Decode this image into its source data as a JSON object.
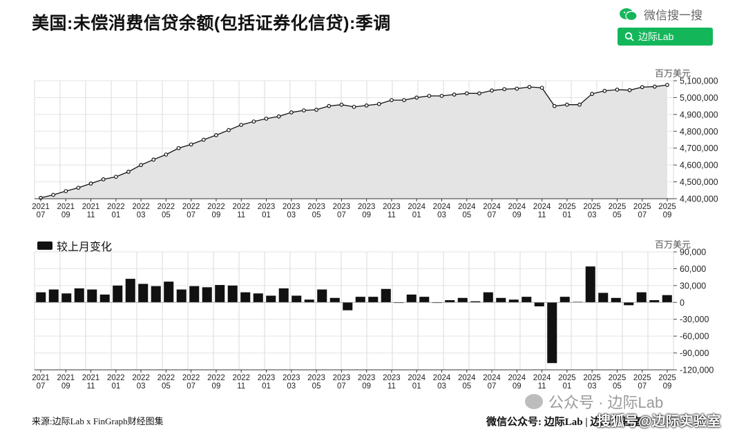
{
  "header": {
    "title": "美国:未偿消费信贷余额(包括证券化信贷):季调",
    "wechat_label": "微信搜一搜",
    "search_text": "边际Lab"
  },
  "footer": {
    "source": "来源:边际Lab x FinGraph财经图集",
    "official_account": "微信公众号: 边际Lab | 边际实验室",
    "watermark_1": "公众号 · 边际Lab",
    "watermark_2": "搜狐号@边际实验室"
  },
  "colors": {
    "line": "#111111",
    "area": "#e4e4e4",
    "bar": "#111111",
    "accent": "#13b75a"
  },
  "chart_data": [
    {
      "type": "area",
      "title": "美国:未偿消费信贷余额(包括证券化信贷):季调",
      "unit": "百万美元",
      "ylim": [
        4400000,
        5100000
      ],
      "yticks": [
        4400000,
        4500000,
        4600000,
        4700000,
        4800000,
        4900000,
        5000000,
        5100000
      ],
      "ytick_labels": [
        "4,400,000",
        "4,500,000",
        "4,600,000",
        "4,700,000",
        "4,800,000",
        "4,900,000",
        "5,000,000",
        "5,100,000"
      ],
      "x_tick_labels": [
        [
          "2021",
          "07"
        ],
        [
          "2021",
          "09"
        ],
        [
          "2021",
          "11"
        ],
        [
          "2022",
          "01"
        ],
        [
          "2022",
          "03"
        ],
        [
          "2022",
          "05"
        ],
        [
          "2022",
          "07"
        ],
        [
          "2022",
          "09"
        ],
        [
          "2022",
          "11"
        ],
        [
          "2023",
          "01"
        ],
        [
          "2023",
          "03"
        ],
        [
          "2023",
          "05"
        ],
        [
          "2023",
          "07"
        ],
        [
          "2023",
          "09"
        ],
        [
          "2023",
          "11"
        ],
        [
          "2024",
          "01"
        ],
        [
          "2024",
          "03"
        ],
        [
          "2024",
          "05"
        ],
        [
          "2024",
          "07"
        ],
        [
          "2024",
          "09"
        ],
        [
          "2024",
          "11"
        ],
        [
          "2025",
          "01"
        ],
        [
          "2025",
          "03"
        ],
        [
          "2025",
          "05"
        ],
        [
          "2025",
          "07"
        ],
        [
          "2025",
          "09"
        ]
      ],
      "x": [
        "2021-07",
        "2021-08",
        "2021-09",
        "2021-10",
        "2021-11",
        "2021-12",
        "2022-01",
        "2022-02",
        "2022-03",
        "2022-04",
        "2022-05",
        "2022-06",
        "2022-07",
        "2022-08",
        "2022-09",
        "2022-10",
        "2022-11",
        "2022-12",
        "2023-01",
        "2023-02",
        "2023-03",
        "2023-04",
        "2023-05",
        "2023-06",
        "2023-07",
        "2023-08",
        "2023-09",
        "2023-10",
        "2023-11",
        "2023-12",
        "2024-01",
        "2024-02",
        "2024-03",
        "2024-04",
        "2024-05",
        "2024-06",
        "2024-07",
        "2024-08",
        "2024-09",
        "2024-10",
        "2024-11",
        "2024-12",
        "2025-01",
        "2025-02",
        "2025-03",
        "2025-04",
        "2025-05",
        "2025-06",
        "2025-07",
        "2025-08",
        "2025-09"
      ],
      "values": [
        4405000,
        4423000,
        4445000,
        4465000,
        4490000,
        4515000,
        4530000,
        4560000,
        4600000,
        4632000,
        4662000,
        4700000,
        4722000,
        4750000,
        4777000,
        4807000,
        4838000,
        4858000,
        4875000,
        4888000,
        4912000,
        4924000,
        4928000,
        4950000,
        4958000,
        4945000,
        4953000,
        4962000,
        4985000,
        4985000,
        5000000,
        5010000,
        5010000,
        5018000,
        5025000,
        5025000,
        5042000,
        5050000,
        5053000,
        5063000,
        5058000,
        4950000,
        4958000,
        4958000,
        5022000,
        5040000,
        5047000,
        5044000,
        5062000,
        5065000,
        5075000
      ],
      "grid": true
    },
    {
      "type": "bar",
      "legend": "较上月变化",
      "unit": "百万美元",
      "ylim": [
        -120000,
        90000
      ],
      "yticks": [
        -120000,
        -90000,
        -60000,
        -30000,
        0,
        30000,
        60000,
        90000
      ],
      "ytick_labels": [
        "-120,000",
        "-90,000",
        "-60,000",
        "-30,000",
        "0",
        "30,000",
        "60,000",
        "90,000"
      ],
      "x_tick_labels": [
        [
          "2021",
          "07"
        ],
        [
          "2021",
          "09"
        ],
        [
          "2021",
          "11"
        ],
        [
          "2022",
          "01"
        ],
        [
          "2022",
          "03"
        ],
        [
          "2022",
          "05"
        ],
        [
          "2022",
          "07"
        ],
        [
          "2022",
          "09"
        ],
        [
          "2022",
          "11"
        ],
        [
          "2023",
          "01"
        ],
        [
          "2023",
          "03"
        ],
        [
          "2023",
          "05"
        ],
        [
          "2023",
          "07"
        ],
        [
          "2023",
          "09"
        ],
        [
          "2023",
          "11"
        ],
        [
          "2024",
          "01"
        ],
        [
          "2024",
          "03"
        ],
        [
          "2024",
          "05"
        ],
        [
          "2024",
          "07"
        ],
        [
          "2024",
          "09"
        ],
        [
          "2024",
          "11"
        ],
        [
          "2025",
          "01"
        ],
        [
          "2025",
          "03"
        ],
        [
          "2025",
          "05"
        ],
        [
          "2025",
          "07"
        ],
        [
          "2025",
          "09"
        ]
      ],
      "values": [
        18000,
        23000,
        16000,
        25000,
        23000,
        14000,
        30000,
        42000,
        33000,
        29000,
        37000,
        23000,
        29000,
        27000,
        31000,
        30000,
        18000,
        16000,
        12000,
        25000,
        12000,
        5000,
        23000,
        8000,
        -14000,
        10000,
        10000,
        24000,
        0,
        14000,
        10000,
        0,
        4000,
        8000,
        2000,
        18000,
        8000,
        5000,
        10000,
        -7000,
        -108000,
        10000,
        1000,
        64000,
        17000,
        8000,
        -5000,
        18000,
        4000,
        13000
      ],
      "grid": true
    }
  ]
}
